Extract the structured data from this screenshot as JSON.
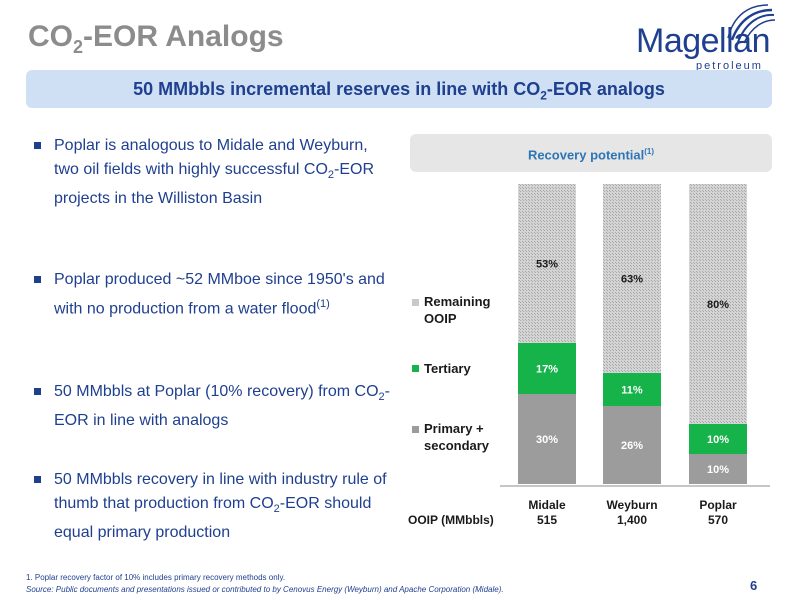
{
  "header": {
    "title_prefix": "CO",
    "title_sub": "2",
    "title_suffix": "-EOR Analogs",
    "logo_word": "Magellan",
    "logo_sub": "petroleum"
  },
  "banner": {
    "prefix": "50 MMbbls incremental reserves in line with CO",
    "sub": "2",
    "suffix": "-EOR analogs"
  },
  "bullets": {
    "b1_a": "Poplar is analogous to Midale and Weyburn, two oil fields with highly successful CO",
    "b1_sub": "2",
    "b1_b": "-EOR projects in the Williston Basin",
    "b2_a": "Poplar produced ~52 MMboe since 1950's and with no production from a water flood",
    "b2_sup": "(1)",
    "b3_a": "50 MMbbls at Poplar (10% recovery) from CO",
    "b3_sub": "2",
    "b3_b": "-EOR in line with analogs",
    "b4_a": "50 MMbbls recovery in line with industry rule of thumb that production from CO",
    "b4_sub": "2",
    "b4_b": "-EOR should equal primary production"
  },
  "recovery_box": {
    "label": "Recovery potential",
    "sup": "(1)"
  },
  "chart_data": {
    "type": "bar",
    "stacked": true,
    "categories": [
      "Midale",
      "Weyburn",
      "Poplar"
    ],
    "category_ooip": [
      "515",
      "1,400",
      "570"
    ],
    "ooip_label": "OOIP (MMbbls)",
    "series": [
      {
        "name": "Primary + secondary",
        "values": [
          30,
          26,
          10
        ],
        "labels": [
          "30%",
          "26%",
          "10%"
        ]
      },
      {
        "name": "Tertiary",
        "values": [
          17,
          11,
          10
        ],
        "labels": [
          "17%",
          "11%",
          "10%"
        ]
      },
      {
        "name": "Remaining OOIP",
        "values": [
          53,
          63,
          80
        ],
        "labels": [
          "53%",
          "63%",
          "80%"
        ]
      }
    ],
    "ylim": [
      0,
      100
    ],
    "legend_position": "left",
    "colors": {
      "primary": "#9c9c9c",
      "tertiary": "#16b24a",
      "remaining": "#c9c9c9"
    }
  },
  "legend": {
    "remaining_line1": "Remaining",
    "remaining_line2": "OOIP",
    "tertiary": "Tertiary",
    "primary_line1": "Primary +",
    "primary_line2": "secondary"
  },
  "footer": {
    "footnote": "1. Poplar recovery factor of 10% includes primary recovery methods only.",
    "source": "Source: Public documents and presentations issued or contributed to by Cenovus Energy (Weyburn) and Apache Corporation (Midale).",
    "page": "6"
  }
}
